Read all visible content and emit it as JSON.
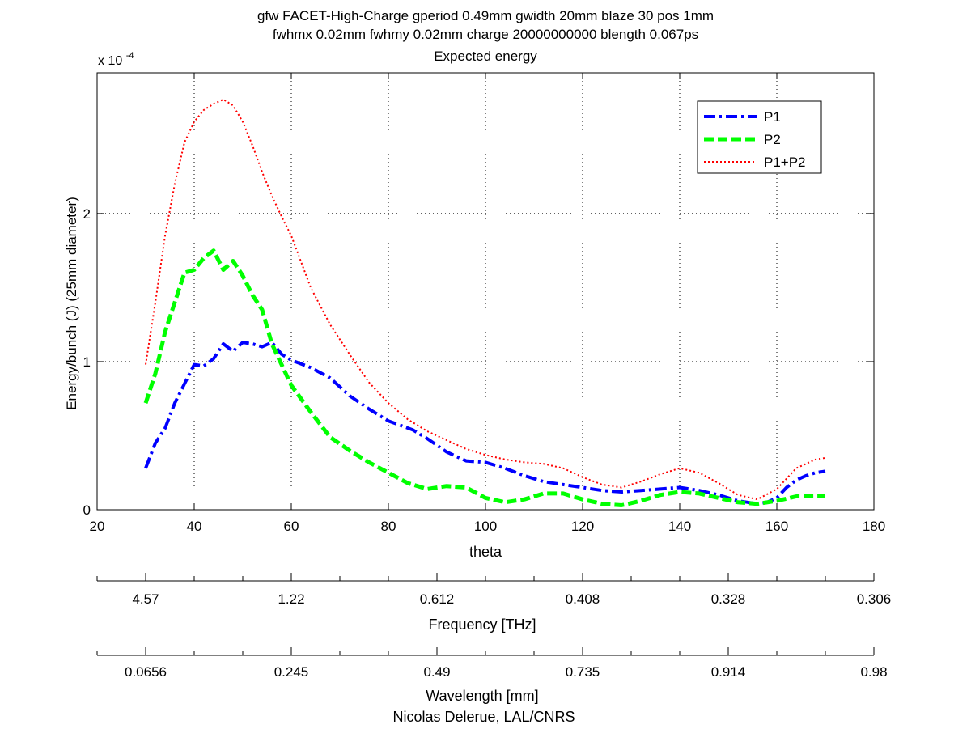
{
  "chart_data": {
    "type": "line",
    "title": [
      "gfw FACET-High-Charge gperiod 0.49mm gwidth 20mm blaze 30 pos 1mm",
      "fwhmx 0.02mm fwhmy 0.02mm charge 20000000000 blength 0.067ps",
      "Expected energy"
    ],
    "xlabel": "theta",
    "ylabel": "Energy/bunch (J) (25mm diameter)",
    "y_multiplier_base": "x 10",
    "y_multiplier_exp": "-4",
    "xlim": [
      20,
      180
    ],
    "ylim": [
      0,
      2.95
    ],
    "x_ticks": [
      20,
      40,
      60,
      80,
      100,
      120,
      140,
      160,
      180
    ],
    "y_ticks": [
      0,
      1,
      2
    ],
    "grid": true,
    "legend_position": "top-right",
    "series": [
      {
        "name": "P1",
        "color": "#0000ff",
        "style": "dashdot",
        "x": [
          30,
          32,
          34,
          36,
          38,
          40,
          42,
          44,
          46,
          48,
          50,
          52,
          54,
          56,
          58,
          60,
          64,
          68,
          72,
          76,
          80,
          85,
          88,
          92,
          96,
          100,
          104,
          108,
          112,
          116,
          120,
          124,
          128,
          132,
          136,
          140,
          144,
          148,
          152,
          156,
          158,
          160,
          162,
          164,
          166,
          168,
          170
        ],
        "y": [
          0.28,
          0.45,
          0.55,
          0.72,
          0.85,
          0.98,
          0.97,
          1.02,
          1.12,
          1.07,
          1.13,
          1.12,
          1.1,
          1.13,
          1.05,
          1.01,
          0.96,
          0.89,
          0.77,
          0.68,
          0.6,
          0.54,
          0.48,
          0.39,
          0.33,
          0.32,
          0.28,
          0.23,
          0.19,
          0.17,
          0.15,
          0.13,
          0.12,
          0.13,
          0.14,
          0.15,
          0.13,
          0.1,
          0.06,
          0.04,
          0.05,
          0.08,
          0.15,
          0.2,
          0.23,
          0.25,
          0.26
        ]
      },
      {
        "name": "P2",
        "color": "#00ff00",
        "style": "dashed",
        "x": [
          30,
          32,
          34,
          36,
          38,
          40,
          42,
          44,
          46,
          48,
          50,
          52,
          54,
          56,
          58,
          60,
          64,
          68,
          72,
          76,
          80,
          84,
          88,
          92,
          96,
          100,
          104,
          108,
          112,
          116,
          120,
          124,
          128,
          132,
          136,
          140,
          144,
          148,
          152,
          156,
          160,
          164,
          168,
          170
        ],
        "y": [
          0.72,
          0.92,
          1.2,
          1.4,
          1.6,
          1.62,
          1.7,
          1.75,
          1.62,
          1.68,
          1.58,
          1.45,
          1.35,
          1.12,
          0.98,
          0.84,
          0.66,
          0.49,
          0.4,
          0.32,
          0.25,
          0.18,
          0.14,
          0.16,
          0.15,
          0.08,
          0.05,
          0.07,
          0.11,
          0.11,
          0.07,
          0.04,
          0.03,
          0.06,
          0.1,
          0.12,
          0.11,
          0.08,
          0.05,
          0.04,
          0.06,
          0.09,
          0.09,
          0.09
        ]
      },
      {
        "name": "P1+P2",
        "color": "#ff0000",
        "style": "dotted",
        "x": [
          30,
          32,
          34,
          36,
          38,
          40,
          42,
          44,
          46,
          48,
          50,
          52,
          54,
          56,
          58,
          60,
          64,
          68,
          72,
          76,
          80,
          84,
          88,
          92,
          96,
          100,
          104,
          108,
          112,
          116,
          120,
          124,
          128,
          132,
          136,
          140,
          144,
          148,
          152,
          156,
          160,
          164,
          168,
          170
        ],
        "y": [
          0.98,
          1.4,
          1.85,
          2.2,
          2.48,
          2.62,
          2.7,
          2.74,
          2.77,
          2.73,
          2.62,
          2.46,
          2.28,
          2.12,
          1.98,
          1.85,
          1.5,
          1.25,
          1.05,
          0.86,
          0.72,
          0.61,
          0.53,
          0.47,
          0.41,
          0.37,
          0.34,
          0.32,
          0.31,
          0.28,
          0.22,
          0.17,
          0.15,
          0.19,
          0.24,
          0.28,
          0.25,
          0.18,
          0.1,
          0.07,
          0.14,
          0.28,
          0.34,
          0.35
        ]
      }
    ],
    "freq_axis": {
      "label": "Frequency [THz]",
      "tick_labels": [
        "4.57",
        "1.22",
        "0.612",
        "0.408",
        "0.328",
        "0.306"
      ],
      "tick_theta": [
        30,
        60,
        90,
        120,
        150,
        180
      ],
      "minor_theta": [
        20,
        40,
        50,
        70,
        80,
        100,
        110,
        130,
        140,
        160,
        170
      ]
    },
    "wavelength_axis": {
      "label": "Wavelength [mm]",
      "tick_labels": [
        "0.0656",
        "0.245",
        "0.49",
        "0.735",
        "0.914",
        "0.98"
      ],
      "tick_theta": [
        30,
        60,
        90,
        120,
        150,
        180
      ],
      "minor_theta": [
        20,
        40,
        50,
        70,
        80,
        100,
        110,
        130,
        140,
        160,
        170
      ]
    },
    "credit": "Nicolas Delerue, LAL/CNRS"
  }
}
